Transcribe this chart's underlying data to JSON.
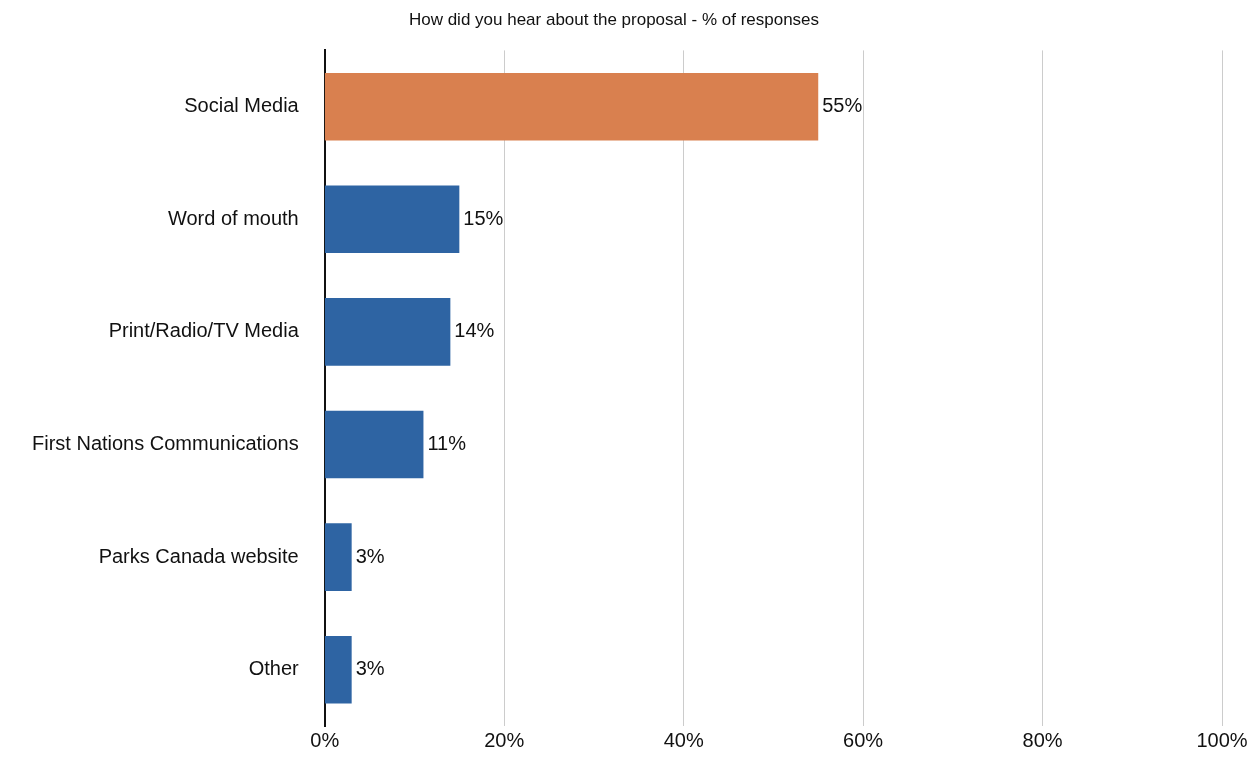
{
  "chart_data": {
    "type": "bar",
    "orientation": "horizontal",
    "title": "How did you hear about the proposal - % of responses",
    "categories": [
      "Social Media",
      "Word of mouth",
      "Print/Radio/TV Media",
      "First Nations Communications",
      "Parks Canada website",
      "Other"
    ],
    "values": [
      55,
      15,
      14,
      11,
      3,
      3
    ],
    "colors": [
      "#d9804f",
      "#2e64a3",
      "#2e64a3",
      "#2e64a3",
      "#2e64a3",
      "#2e64a3"
    ],
    "value_labels": [
      "55%",
      "15%",
      "14%",
      "11%",
      "3%",
      "3%"
    ],
    "xlim": [
      0,
      100
    ],
    "xticks": [
      {
        "value": 0,
        "label": "0%"
      },
      {
        "value": 20,
        "label": "20%"
      },
      {
        "value": 40,
        "label": "40%"
      },
      {
        "value": 60,
        "label": "60%"
      },
      {
        "value": 80,
        "label": "80%"
      },
      {
        "value": 100,
        "label": "100%"
      }
    ],
    "grid": "x",
    "legend": false
  }
}
